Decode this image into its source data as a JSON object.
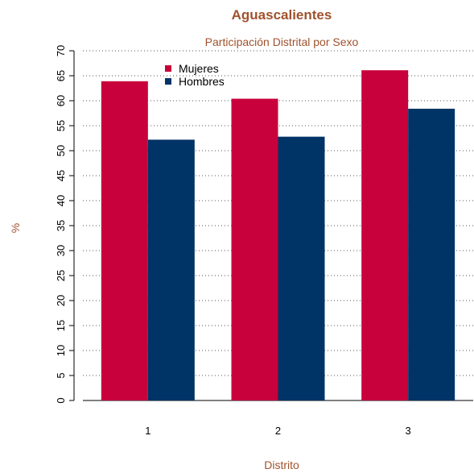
{
  "chart_data": {
    "type": "bar",
    "title": "Aguascalientes",
    "subtitle": "Participación Distrital por Sexo",
    "xlabel": "Distrito",
    "ylabel": "%",
    "categories": [
      "1",
      "2",
      "3"
    ],
    "series": [
      {
        "name": "Mujeres",
        "values": [
          63.9,
          60.4,
          66.1
        ],
        "color": "#c8003c"
      },
      {
        "name": "Hombres",
        "values": [
          52.2,
          52.8,
          58.4
        ],
        "color": "#003366"
      }
    ],
    "ylim": [
      0,
      70
    ],
    "yticks": [
      0,
      5,
      10,
      15,
      20,
      25,
      30,
      35,
      40,
      45,
      50,
      55,
      60,
      65,
      70
    ],
    "grid": true,
    "legend_position": "top-left",
    "text_color": "#a0522d"
  }
}
